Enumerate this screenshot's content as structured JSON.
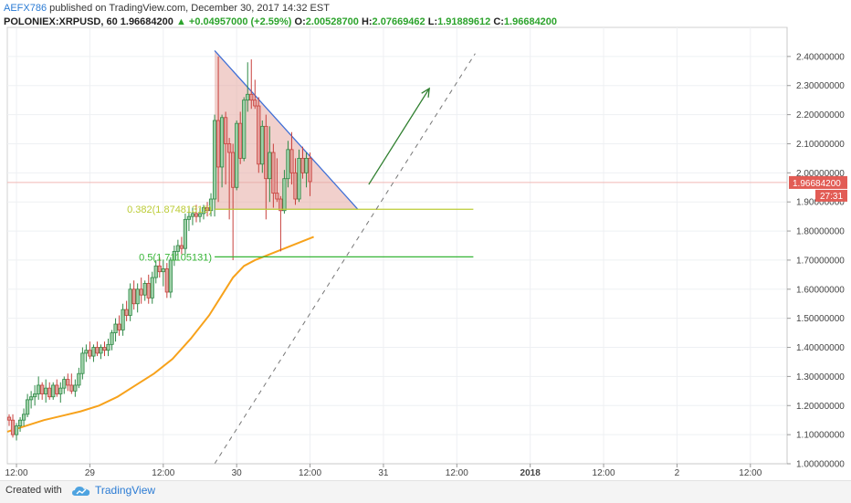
{
  "header": {
    "author": "AEFX786",
    "published": " published on TradingView.com, December 30, 2017 14:32 EST",
    "symbol": "POLONIEX:XRPUSD, 60",
    "last": "1.96684200",
    "change_arrow": "▲",
    "change": "+0.04957000 (+2.59%)",
    "o_label": "O:",
    "o_value": "2.00528700",
    "h_label": "H:",
    "h_value": "2.07669462",
    "l_label": "L:",
    "l_value": "1.91889612",
    "c_label": "C:",
    "c_value": "1.96684200"
  },
  "footer": {
    "created_with": "Created with",
    "brand": "TradingView",
    "logo_icon": "tradingview-cloud-icon"
  },
  "colors": {
    "up": "#2f8a47",
    "down": "#c8413d",
    "up_fill": "#9ed0a8",
    "down_fill": "#e4a09c",
    "ma": "#f7a21b",
    "triangle_fill": "#e6aaa3",
    "triangle_edge": "#3f6fd6",
    "fib_0382": "#bccc36",
    "fib_05": "#36b536",
    "arrow": "#2f7f2f",
    "trendline": "#777777",
    "price_badge": "#e25c55"
  },
  "chart_data": {
    "type": "candlestick",
    "title": "POLONIEX:XRPUSD, 60",
    "x_range": [
      -5,
      420
    ],
    "ylim": [
      1.0,
      2.5
    ],
    "grid": true,
    "x_tick_labels": [
      {
        "x": 0,
        "label": "12:00"
      },
      {
        "x": 40,
        "label": "29"
      },
      {
        "x": 80,
        "label": "12:00"
      },
      {
        "x": 120,
        "label": "30"
      },
      {
        "x": 160,
        "label": "12:00"
      },
      {
        "x": 200,
        "label": "31"
      },
      {
        "x": 240,
        "label": "12:00"
      },
      {
        "x": 280,
        "label": "2018"
      },
      {
        "x": 320,
        "label": "12:00"
      },
      {
        "x": 360,
        "label": "2"
      },
      {
        "x": 400,
        "label": "12:00"
      }
    ],
    "y_tick_labels": [
      "1.00000000",
      "1.10000000",
      "1.20000000",
      "1.30000000",
      "1.40000000",
      "1.50000000",
      "1.60000000",
      "1.70000000",
      "1.80000000",
      "1.90000000",
      "2.00000000",
      "2.10000000",
      "2.20000000",
      "2.30000000",
      "2.40000000"
    ],
    "y_ticks": [
      1.0,
      1.1,
      1.2,
      1.3,
      1.4,
      1.5,
      1.6,
      1.7,
      1.8,
      1.9,
      2.0,
      2.1,
      2.2,
      2.3,
      2.4
    ],
    "current_price": {
      "value": 1.966842,
      "label": "1.96684200",
      "countdown": "27:31"
    },
    "candles": [
      {
        "x": -4,
        "o": 1.16,
        "h": 1.17,
        "l": 1.13,
        "c": 1.15
      },
      {
        "x": -2,
        "o": 1.15,
        "h": 1.17,
        "l": 1.09,
        "c": 1.1
      },
      {
        "x": 0,
        "o": 1.1,
        "h": 1.14,
        "l": 1.08,
        "c": 1.13
      },
      {
        "x": 2,
        "o": 1.13,
        "h": 1.16,
        "l": 1.11,
        "c": 1.15
      },
      {
        "x": 4,
        "o": 1.15,
        "h": 1.19,
        "l": 1.13,
        "c": 1.17
      },
      {
        "x": 6,
        "o": 1.17,
        "h": 1.24,
        "l": 1.16,
        "c": 1.22
      },
      {
        "x": 8,
        "o": 1.22,
        "h": 1.25,
        "l": 1.19,
        "c": 1.23
      },
      {
        "x": 10,
        "o": 1.23,
        "h": 1.27,
        "l": 1.2,
        "c": 1.24
      },
      {
        "x": 12,
        "o": 1.24,
        "h": 1.3,
        "l": 1.22,
        "c": 1.27
      },
      {
        "x": 14,
        "o": 1.27,
        "h": 1.28,
        "l": 1.22,
        "c": 1.24
      },
      {
        "x": 16,
        "o": 1.24,
        "h": 1.29,
        "l": 1.21,
        "c": 1.26
      },
      {
        "x": 18,
        "o": 1.26,
        "h": 1.28,
        "l": 1.22,
        "c": 1.23
      },
      {
        "x": 20,
        "o": 1.23,
        "h": 1.28,
        "l": 1.22,
        "c": 1.27
      },
      {
        "x": 22,
        "o": 1.27,
        "h": 1.29,
        "l": 1.23,
        "c": 1.24
      },
      {
        "x": 24,
        "o": 1.24,
        "h": 1.28,
        "l": 1.21,
        "c": 1.26
      },
      {
        "x": 26,
        "o": 1.26,
        "h": 1.3,
        "l": 1.24,
        "c": 1.29
      },
      {
        "x": 28,
        "o": 1.29,
        "h": 1.31,
        "l": 1.25,
        "c": 1.27
      },
      {
        "x": 30,
        "o": 1.27,
        "h": 1.31,
        "l": 1.24,
        "c": 1.25
      },
      {
        "x": 32,
        "o": 1.25,
        "h": 1.29,
        "l": 1.23,
        "c": 1.27
      },
      {
        "x": 34,
        "o": 1.27,
        "h": 1.33,
        "l": 1.26,
        "c": 1.31
      },
      {
        "x": 36,
        "o": 1.31,
        "h": 1.4,
        "l": 1.29,
        "c": 1.38
      },
      {
        "x": 38,
        "o": 1.38,
        "h": 1.41,
        "l": 1.35,
        "c": 1.39
      },
      {
        "x": 40,
        "o": 1.39,
        "h": 1.42,
        "l": 1.36,
        "c": 1.37
      },
      {
        "x": 42,
        "o": 1.37,
        "h": 1.41,
        "l": 1.35,
        "c": 1.4
      },
      {
        "x": 44,
        "o": 1.4,
        "h": 1.42,
        "l": 1.37,
        "c": 1.38
      },
      {
        "x": 46,
        "o": 1.38,
        "h": 1.41,
        "l": 1.36,
        "c": 1.4
      },
      {
        "x": 48,
        "o": 1.4,
        "h": 1.42,
        "l": 1.37,
        "c": 1.39
      },
      {
        "x": 50,
        "o": 1.39,
        "h": 1.43,
        "l": 1.37,
        "c": 1.41
      },
      {
        "x": 52,
        "o": 1.41,
        "h": 1.46,
        "l": 1.39,
        "c": 1.45
      },
      {
        "x": 54,
        "o": 1.45,
        "h": 1.5,
        "l": 1.42,
        "c": 1.48
      },
      {
        "x": 56,
        "o": 1.48,
        "h": 1.51,
        "l": 1.44,
        "c": 1.46
      },
      {
        "x": 58,
        "o": 1.46,
        "h": 1.55,
        "l": 1.44,
        "c": 1.53
      },
      {
        "x": 60,
        "o": 1.53,
        "h": 1.56,
        "l": 1.49,
        "c": 1.51
      },
      {
        "x": 62,
        "o": 1.51,
        "h": 1.62,
        "l": 1.49,
        "c": 1.6
      },
      {
        "x": 64,
        "o": 1.6,
        "h": 1.63,
        "l": 1.53,
        "c": 1.55
      },
      {
        "x": 66,
        "o": 1.55,
        "h": 1.62,
        "l": 1.52,
        "c": 1.6
      },
      {
        "x": 68,
        "o": 1.6,
        "h": 1.64,
        "l": 1.55,
        "c": 1.58
      },
      {
        "x": 70,
        "o": 1.58,
        "h": 1.63,
        "l": 1.56,
        "c": 1.62
      },
      {
        "x": 72,
        "o": 1.62,
        "h": 1.65,
        "l": 1.55,
        "c": 1.57
      },
      {
        "x": 74,
        "o": 1.57,
        "h": 1.66,
        "l": 1.55,
        "c": 1.64
      },
      {
        "x": 76,
        "o": 1.64,
        "h": 1.7,
        "l": 1.62,
        "c": 1.68
      },
      {
        "x": 78,
        "o": 1.68,
        "h": 1.71,
        "l": 1.64,
        "c": 1.66
      },
      {
        "x": 80,
        "o": 1.66,
        "h": 1.7,
        "l": 1.61,
        "c": 1.67
      },
      {
        "x": 82,
        "o": 1.67,
        "h": 1.69,
        "l": 1.57,
        "c": 1.59
      },
      {
        "x": 84,
        "o": 1.59,
        "h": 1.71,
        "l": 1.57,
        "c": 1.7
      },
      {
        "x": 86,
        "o": 1.7,
        "h": 1.75,
        "l": 1.68,
        "c": 1.73
      },
      {
        "x": 88,
        "o": 1.73,
        "h": 1.77,
        "l": 1.7,
        "c": 1.75
      },
      {
        "x": 90,
        "o": 1.75,
        "h": 1.78,
        "l": 1.72,
        "c": 1.74
      },
      {
        "x": 92,
        "o": 1.74,
        "h": 1.86,
        "l": 1.72,
        "c": 1.84
      },
      {
        "x": 94,
        "o": 1.84,
        "h": 1.88,
        "l": 1.8,
        "c": 1.85
      },
      {
        "x": 96,
        "o": 1.85,
        "h": 1.88,
        "l": 1.82,
        "c": 1.86
      },
      {
        "x": 98,
        "o": 1.86,
        "h": 1.89,
        "l": 1.83,
        "c": 1.85
      },
      {
        "x": 100,
        "o": 1.85,
        "h": 1.88,
        "l": 1.83,
        "c": 1.86
      },
      {
        "x": 102,
        "o": 1.86,
        "h": 1.89,
        "l": 1.84,
        "c": 1.88
      },
      {
        "x": 104,
        "o": 1.88,
        "h": 1.9,
        "l": 1.85,
        "c": 1.87
      },
      {
        "x": 106,
        "o": 1.87,
        "h": 1.93,
        "l": 1.85,
        "c": 1.91
      },
      {
        "x": 108,
        "o": 1.91,
        "h": 2.2,
        "l": 1.85,
        "c": 2.18
      },
      {
        "x": 110,
        "o": 2.18,
        "h": 2.4,
        "l": 1.9,
        "c": 2.02
      },
      {
        "x": 112,
        "o": 2.02,
        "h": 2.2,
        "l": 1.95,
        "c": 2.19
      },
      {
        "x": 114,
        "o": 2.19,
        "h": 2.21,
        "l": 1.96,
        "c": 2.1
      },
      {
        "x": 116,
        "o": 2.1,
        "h": 2.12,
        "l": 1.84,
        "c": 2.07
      },
      {
        "x": 118,
        "o": 2.07,
        "h": 2.1,
        "l": 1.7,
        "c": 1.95
      },
      {
        "x": 120,
        "o": 1.95,
        "h": 2.18,
        "l": 1.94,
        "c": 2.17
      },
      {
        "x": 122,
        "o": 2.17,
        "h": 2.21,
        "l": 2.03,
        "c": 2.05
      },
      {
        "x": 124,
        "o": 2.05,
        "h": 2.26,
        "l": 2.04,
        "c": 2.25
      },
      {
        "x": 126,
        "o": 2.25,
        "h": 2.38,
        "l": 2.21,
        "c": 2.27
      },
      {
        "x": 128,
        "o": 2.27,
        "h": 2.39,
        "l": 2.22,
        "c": 2.25
      },
      {
        "x": 130,
        "o": 2.25,
        "h": 2.32,
        "l": 2.22,
        "c": 2.23
      },
      {
        "x": 132,
        "o": 2.23,
        "h": 2.26,
        "l": 2.0,
        "c": 2.03
      },
      {
        "x": 134,
        "o": 2.03,
        "h": 2.18,
        "l": 2.0,
        "c": 2.16
      },
      {
        "x": 136,
        "o": 2.16,
        "h": 2.2,
        "l": 1.84,
        "c": 1.98
      },
      {
        "x": 138,
        "o": 1.98,
        "h": 2.16,
        "l": 1.9,
        "c": 2.07
      },
      {
        "x": 140,
        "o": 2.07,
        "h": 2.1,
        "l": 1.88,
        "c": 1.93
      },
      {
        "x": 142,
        "o": 1.93,
        "h": 2.05,
        "l": 1.9,
        "c": 1.91
      },
      {
        "x": 144,
        "o": 1.91,
        "h": 1.92,
        "l": 1.73,
        "c": 1.87
      },
      {
        "x": 146,
        "o": 1.87,
        "h": 2.01,
        "l": 1.86,
        "c": 1.98
      },
      {
        "x": 148,
        "o": 1.98,
        "h": 2.11,
        "l": 1.95,
        "c": 2.08
      },
      {
        "x": 150,
        "o": 2.08,
        "h": 2.14,
        "l": 1.96,
        "c": 2.0
      },
      {
        "x": 152,
        "o": 2.0,
        "h": 2.05,
        "l": 1.89,
        "c": 1.91
      },
      {
        "x": 154,
        "o": 1.91,
        "h": 2.08,
        "l": 1.9,
        "c": 2.05
      },
      {
        "x": 156,
        "o": 2.05,
        "h": 2.09,
        "l": 1.98,
        "c": 2.0
      },
      {
        "x": 158,
        "o": 2.0,
        "h": 2.07,
        "l": 1.95,
        "c": 2.05
      },
      {
        "x": 160,
        "o": 2.05,
        "h": 2.07,
        "l": 1.92,
        "c": 1.97
      }
    ],
    "moving_average": [
      {
        "x": -5,
        "y": 1.11
      },
      {
        "x": 5,
        "y": 1.13
      },
      {
        "x": 15,
        "y": 1.15
      },
      {
        "x": 25,
        "y": 1.165
      },
      {
        "x": 35,
        "y": 1.18
      },
      {
        "x": 45,
        "y": 1.2
      },
      {
        "x": 55,
        "y": 1.23
      },
      {
        "x": 65,
        "y": 1.27
      },
      {
        "x": 75,
        "y": 1.31
      },
      {
        "x": 85,
        "y": 1.36
      },
      {
        "x": 95,
        "y": 1.43
      },
      {
        "x": 105,
        "y": 1.51
      },
      {
        "x": 112,
        "y": 1.58
      },
      {
        "x": 118,
        "y": 1.64
      },
      {
        "x": 124,
        "y": 1.68
      },
      {
        "x": 130,
        "y": 1.7
      },
      {
        "x": 138,
        "y": 1.72
      },
      {
        "x": 146,
        "y": 1.74
      },
      {
        "x": 154,
        "y": 1.76
      },
      {
        "x": 162,
        "y": 1.78
      }
    ],
    "drawings": {
      "triangle": [
        {
          "x": 108,
          "y": 2.42
        },
        {
          "x": 108,
          "y": 1.875
        },
        {
          "x": 186,
          "y": 1.875
        }
      ],
      "fib_levels": [
        {
          "name": "0.382",
          "label": "0.382(1.87481319)",
          "value": 1.87481319,
          "x_start": 108,
          "x_end": 249
        },
        {
          "name": "0.5",
          "label": "0.5(1.71105131)",
          "value": 1.71105131,
          "x_start": 108,
          "x_end": 249
        }
      ],
      "trendline": [
        {
          "x": 108,
          "y": 1.0
        },
        {
          "x": 250,
          "y": 2.41
        }
      ],
      "arrow": [
        {
          "x": 192,
          "y": 1.96
        },
        {
          "x": 225,
          "y": 2.29
        }
      ]
    }
  }
}
